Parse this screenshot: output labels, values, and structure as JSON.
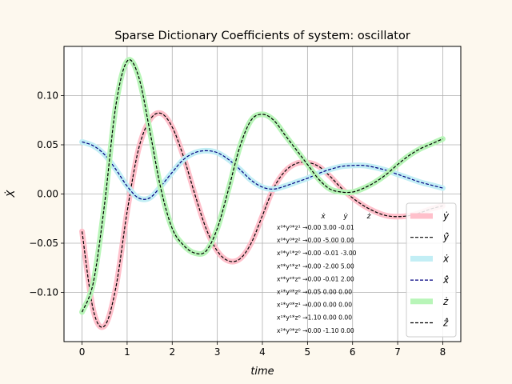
{
  "chart_data": {
    "type": "line",
    "title": "Sparse Dictionary Coefficients of system: oscillator",
    "xlabel": "time",
    "ylabel": "Ẋ",
    "xlim": [
      -0.4,
      8.4
    ],
    "ylim": [
      -0.15,
      0.15
    ],
    "xticks": [
      0,
      1,
      2,
      3,
      4,
      5,
      6,
      7,
      8
    ],
    "yticks": [
      -0.1,
      -0.05,
      0.0,
      0.05,
      0.1
    ],
    "xtick_labels": [
      "0",
      "1",
      "2",
      "3",
      "4",
      "5",
      "6",
      "7",
      "8"
    ],
    "ytick_labels": [
      "−0.10",
      "−0.05",
      "0.00",
      "0.05",
      "0.10"
    ],
    "grid": true,
    "legend_position": "lower-right",
    "x": [
      0,
      0.25,
      0.5,
      0.75,
      1.0,
      1.25,
      1.5,
      1.75,
      2.0,
      2.25,
      2.5,
      2.75,
      3.0,
      3.25,
      3.5,
      3.75,
      4.0,
      4.25,
      4.5,
      4.75,
      5.0,
      5.25,
      5.5,
      5.75,
      6.0,
      6.25,
      6.5,
      6.75,
      7.0,
      7.25,
      7.5,
      7.75,
      8.0
    ],
    "series": [
      {
        "name": "ẏ",
        "color": "#ffc0cb",
        "style": "band",
        "values": [
          -0.038,
          -0.118,
          -0.134,
          -0.095,
          -0.018,
          0.045,
          0.075,
          0.082,
          0.068,
          0.038,
          0.0,
          -0.035,
          -0.058,
          -0.068,
          -0.066,
          -0.05,
          -0.022,
          0.006,
          0.023,
          0.031,
          0.032,
          0.028,
          0.018,
          0.006,
          -0.004,
          -0.012,
          -0.018,
          -0.022,
          -0.023,
          -0.022,
          -0.019,
          -0.015,
          -0.012
        ]
      },
      {
        "name": "ŷ̇",
        "color": "#000000",
        "style": "dashed",
        "values": [
          -0.038,
          -0.118,
          -0.134,
          -0.095,
          -0.018,
          0.045,
          0.075,
          0.082,
          0.068,
          0.038,
          0.0,
          -0.035,
          -0.058,
          -0.068,
          -0.066,
          -0.05,
          -0.022,
          0.006,
          0.023,
          0.031,
          0.032,
          0.028,
          0.018,
          0.006,
          -0.004,
          -0.012,
          -0.018,
          -0.022,
          -0.023,
          -0.022,
          -0.019,
          -0.015,
          -0.012
        ]
      },
      {
        "name": "ẋ",
        "color": "#c2eef5",
        "style": "band",
        "values": [
          0.053,
          0.049,
          0.04,
          0.025,
          0.008,
          -0.004,
          -0.004,
          0.008,
          0.022,
          0.035,
          0.042,
          0.044,
          0.042,
          0.035,
          0.025,
          0.014,
          0.007,
          0.005,
          0.008,
          0.012,
          0.016,
          0.021,
          0.025,
          0.028,
          0.029,
          0.029,
          0.027,
          0.024,
          0.02,
          0.016,
          0.012,
          0.009,
          0.006
        ]
      },
      {
        "name": "x̂̇",
        "color": "#000080",
        "style": "dashed",
        "values": [
          0.053,
          0.049,
          0.04,
          0.025,
          0.008,
          -0.004,
          -0.004,
          0.008,
          0.022,
          0.035,
          0.042,
          0.044,
          0.042,
          0.035,
          0.025,
          0.014,
          0.007,
          0.005,
          0.008,
          0.012,
          0.016,
          0.021,
          0.025,
          0.028,
          0.029,
          0.029,
          0.027,
          0.024,
          0.02,
          0.016,
          0.012,
          0.009,
          0.006
        ]
      },
      {
        "name": "ż",
        "color": "#b8f5b8",
        "style": "band",
        "values": [
          -0.12,
          -0.09,
          -0.01,
          0.09,
          0.135,
          0.12,
          0.065,
          0.005,
          -0.035,
          -0.052,
          -0.06,
          -0.058,
          -0.035,
          0.005,
          0.048,
          0.075,
          0.081,
          0.075,
          0.06,
          0.045,
          0.03,
          0.015,
          0.005,
          0.002,
          0.002,
          0.006,
          0.012,
          0.02,
          0.03,
          0.039,
          0.046,
          0.051,
          0.056
        ]
      },
      {
        "name": "ẑ̇",
        "color": "#000000",
        "style": "dashed",
        "values": [
          -0.12,
          -0.09,
          -0.01,
          0.09,
          0.135,
          0.12,
          0.065,
          0.005,
          -0.035,
          -0.052,
          -0.06,
          -0.058,
          -0.035,
          0.005,
          0.048,
          0.075,
          0.081,
          0.075,
          0.06,
          0.045,
          0.03,
          0.015,
          0.005,
          0.002,
          0.002,
          0.006,
          0.012,
          0.02,
          0.03,
          0.039,
          0.046,
          0.051,
          0.056
        ]
      }
    ],
    "legend": [
      {
        "label": "ẏ",
        "color": "#ffc0cb",
        "style": "band"
      },
      {
        "label": "ŷ̇",
        "color": "#000000",
        "style": "dashed"
      },
      {
        "label": "ẋ",
        "color": "#c2eef5",
        "style": "band"
      },
      {
        "label": "x̂̇",
        "color": "#000080",
        "style": "dashed"
      },
      {
        "label": "ż",
        "color": "#b8f5b8",
        "style": "band"
      },
      {
        "label": "ẑ̇",
        "color": "#000000",
        "style": "dashed"
      }
    ],
    "coefficient_table": {
      "headers": [
        "ẋ",
        "ẏ",
        "ż"
      ],
      "rows": [
        "x⁰*y⁰*z¹ →0.00  3.00 -0.01",
        "x⁰*y⁰*z² →0.00 -5.00  0.00",
        "x⁰*y¹*z⁰ →0.00 -0.01 -3.00",
        "x⁰*y¹*z¹ →0.00 -2.00  5.00",
        "x⁰*y²*z⁰ →0.00 -0.01  2.00",
        "x¹*y⁰*z⁰ →0.05  0.00  0.00",
        "x¹*y⁰*z¹ →0.00  0.00  0.00",
        "x¹*y¹*z⁰ →1.10  0.00  0.00",
        "x²*y⁰*z⁰ →0.00 -1.10  0.00"
      ]
    }
  }
}
